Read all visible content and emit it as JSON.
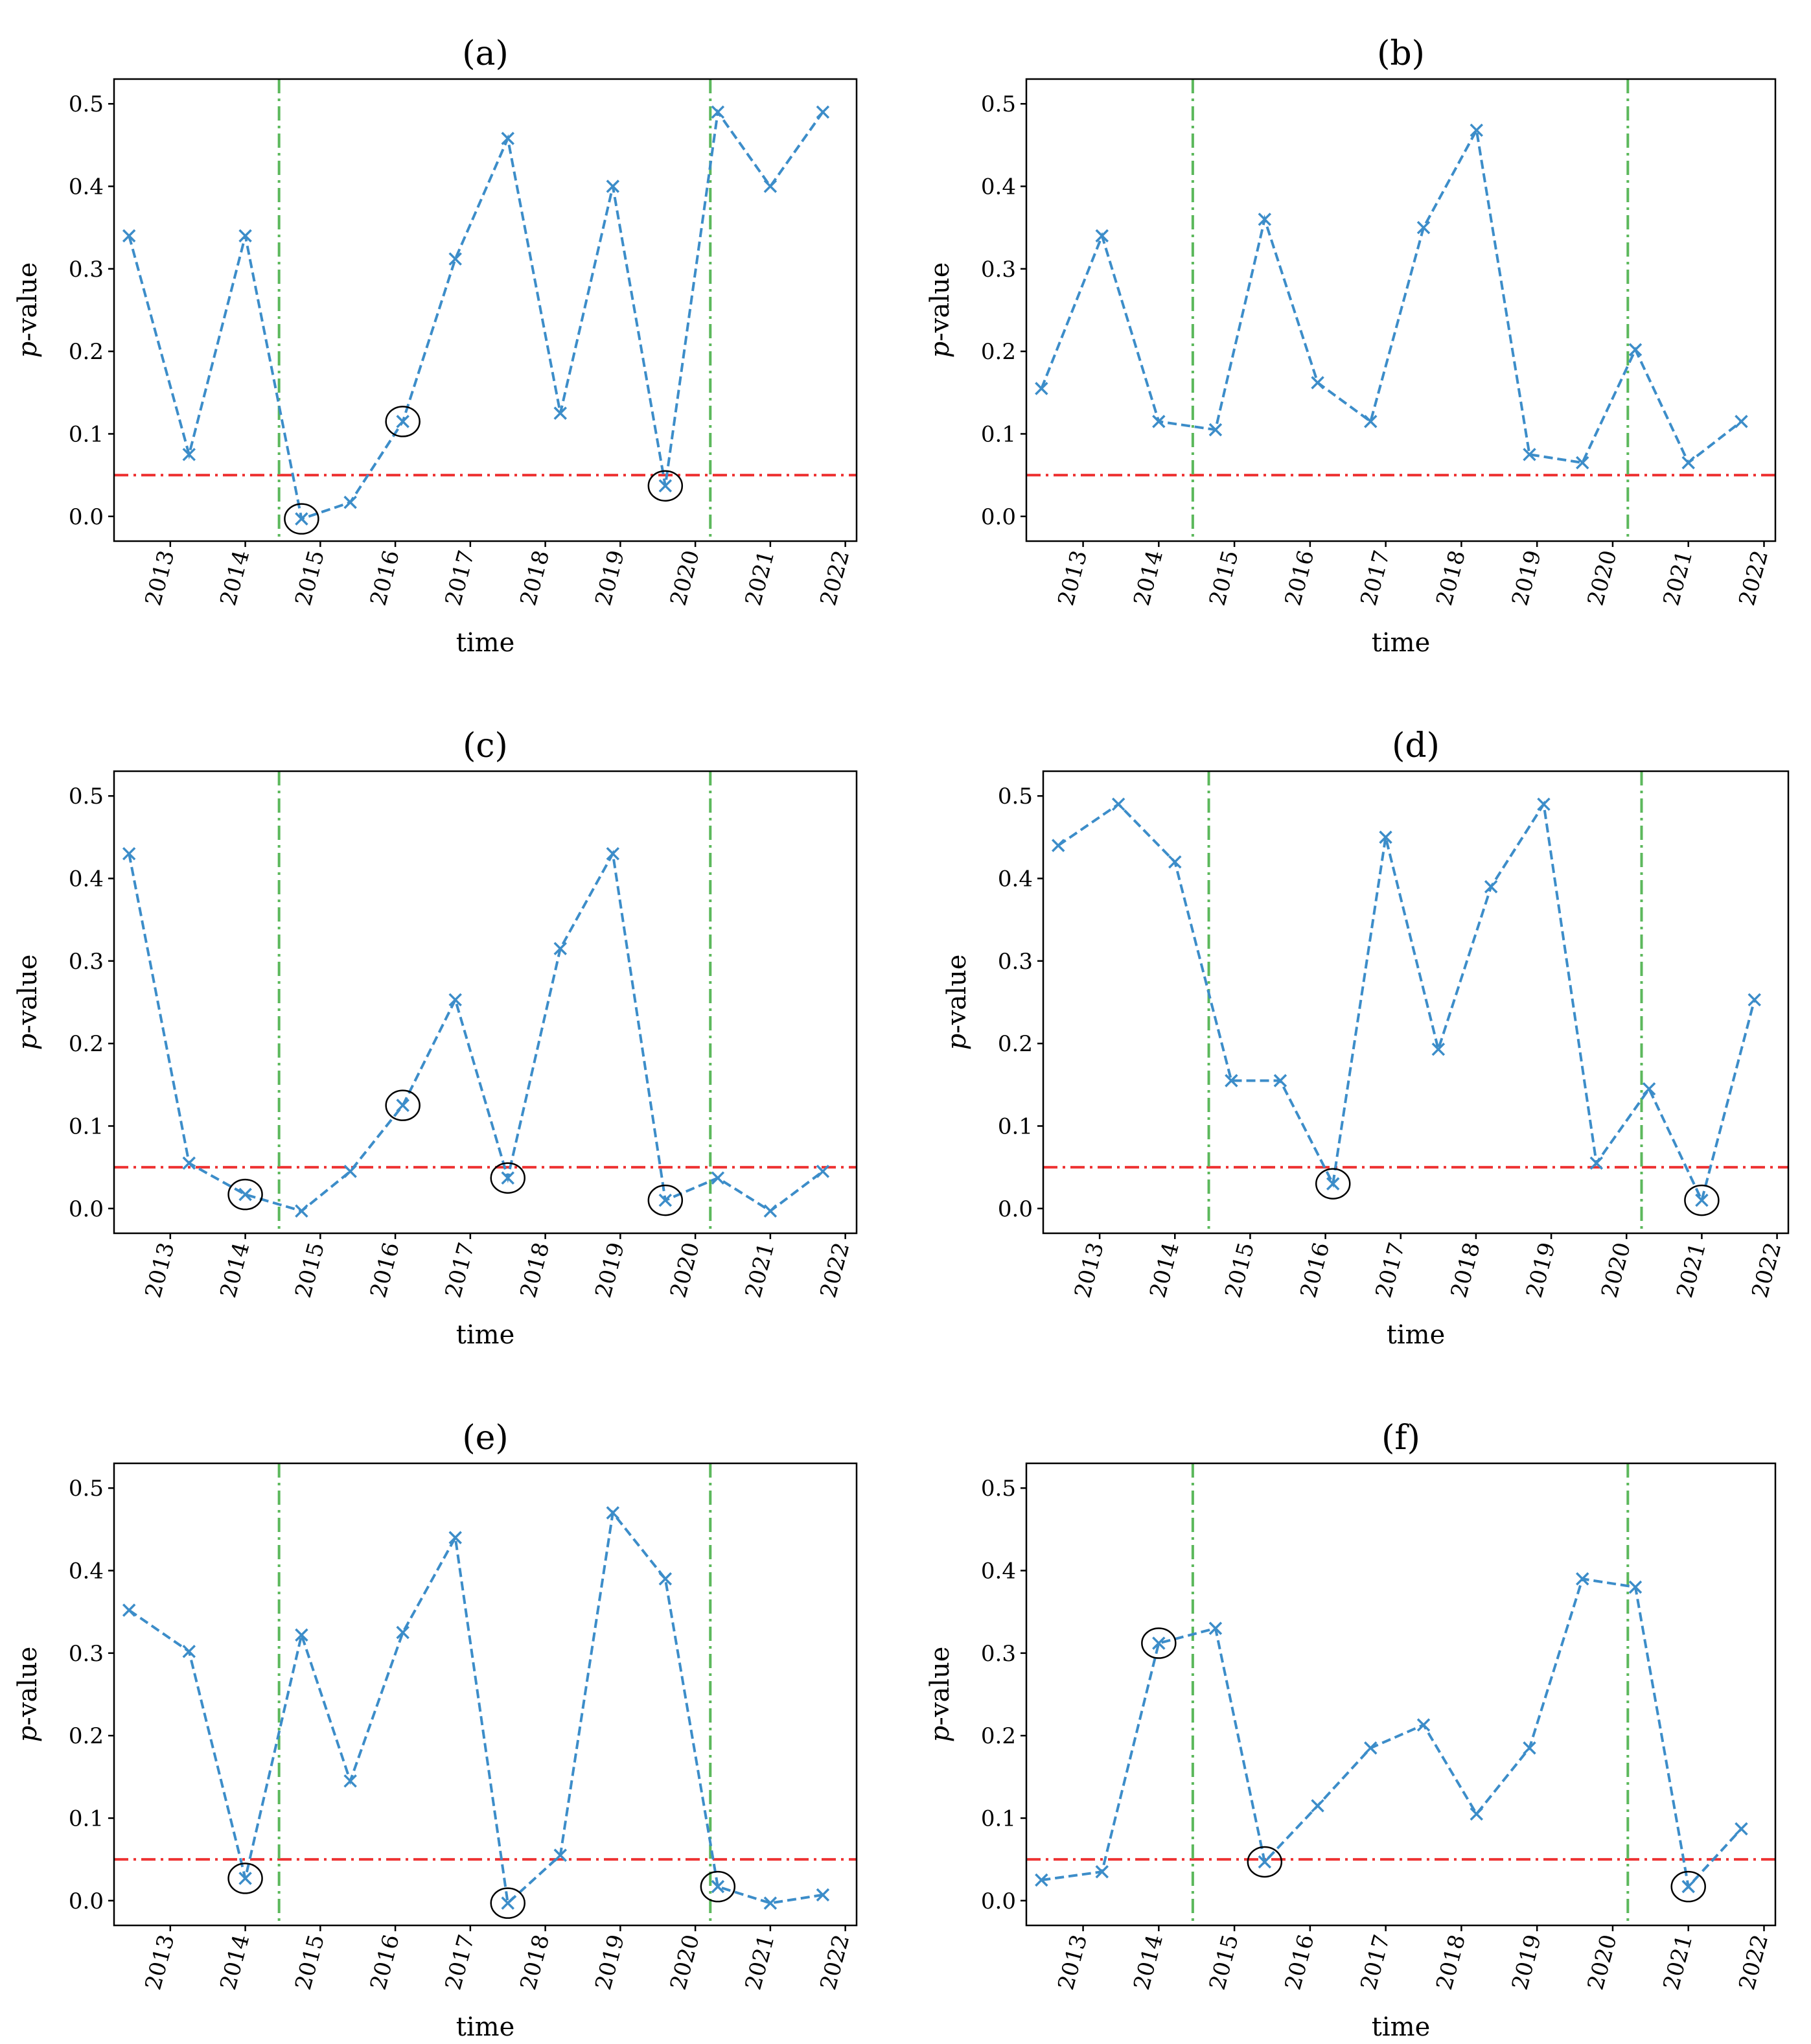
{
  "figure": {
    "colors": {
      "series": "#3c8dc9",
      "threshold": "#ee3333",
      "change_point": "#5cb85c",
      "highlight": "#000000"
    },
    "marker": "x",
    "threshold_value": 0.05,
    "change_point_dates": [
      "2014.45",
      "2020.2"
    ]
  },
  "chart_data": [
    {
      "type": "line",
      "title": "(a)",
      "xlabel": "time",
      "ylabel": "p-value",
      "ylabel_italic": "p",
      "ylabel_rest": "-value",
      "xlim": [
        2012.25,
        2022.15
      ],
      "ylim": [
        -0.03,
        0.53
      ],
      "xticks": [
        "2013",
        "2014",
        "2015",
        "2016",
        "2017",
        "2018",
        "2019",
        "2020",
        "2021",
        "2022"
      ],
      "yticks": [
        "0.0",
        "0.1",
        "0.2",
        "0.3",
        "0.4",
        "0.5"
      ],
      "x": [
        2012.45,
        2013.25,
        2014.0,
        2014.75,
        2015.4,
        2016.1,
        2016.8,
        2017.5,
        2018.2,
        2018.9,
        2019.6,
        2020.3,
        2021.0,
        2021.7
      ],
      "y": [
        0.34,
        0.075,
        0.34,
        -0.003,
        0.017,
        0.115,
        0.312,
        0.458,
        0.125,
        0.4,
        0.037,
        0.49,
        0.4,
        0.49
      ],
      "circled": [
        3,
        5,
        10
      ]
    },
    {
      "type": "line",
      "title": "(b)",
      "xlabel": "time",
      "ylabel": "p-value",
      "ylabel_italic": "p",
      "ylabel_rest": "-value",
      "xlim": [
        2012.25,
        2022.15
      ],
      "ylim": [
        -0.03,
        0.53
      ],
      "xticks": [
        "2013",
        "2014",
        "2015",
        "2016",
        "2017",
        "2018",
        "2019",
        "2020",
        "2021",
        "2022"
      ],
      "yticks": [
        "0.0",
        "0.1",
        "0.2",
        "0.3",
        "0.4",
        "0.5"
      ],
      "x": [
        2012.45,
        2013.25,
        2014.0,
        2014.75,
        2015.4,
        2016.1,
        2016.8,
        2017.5,
        2018.2,
        2018.9,
        2019.6,
        2020.3,
        2021.0,
        2021.7
      ],
      "y": [
        0.155,
        0.34,
        0.115,
        0.105,
        0.36,
        0.162,
        0.115,
        0.35,
        0.468,
        0.075,
        0.065,
        0.202,
        0.065,
        0.115
      ],
      "circled": []
    },
    {
      "type": "line",
      "title": "(c)",
      "xlabel": "time",
      "ylabel": "p-value",
      "ylabel_italic": "p",
      "ylabel_rest": "-value",
      "xlim": [
        2012.25,
        2022.15
      ],
      "ylim": [
        -0.03,
        0.53
      ],
      "xticks": [
        "2013",
        "2014",
        "2015",
        "2016",
        "2017",
        "2018",
        "2019",
        "2020",
        "2021",
        "2022"
      ],
      "yticks": [
        "0.0",
        "0.1",
        "0.2",
        "0.3",
        "0.4",
        "0.5"
      ],
      "x": [
        2012.45,
        2013.25,
        2014.0,
        2014.75,
        2015.4,
        2016.1,
        2016.8,
        2017.5,
        2018.2,
        2018.9,
        2019.6,
        2020.3,
        2021.0,
        2021.7
      ],
      "y": [
        0.43,
        0.055,
        0.017,
        -0.003,
        0.045,
        0.125,
        0.253,
        0.037,
        0.315,
        0.43,
        0.01,
        0.037,
        -0.003,
        0.045
      ],
      "circled": [
        2,
        5,
        7,
        10
      ]
    },
    {
      "type": "line",
      "title": "(d)",
      "xlabel": "time",
      "ylabel": "p-value",
      "ylabel_italic": "p",
      "ylabel_rest": "-value",
      "xlim": [
        2012.25,
        2022.15
      ],
      "ylim": [
        -0.03,
        0.53
      ],
      "xticks": [
        "2013",
        "2014",
        "2015",
        "2016",
        "2017",
        "2018",
        "2019",
        "2020",
        "2021",
        "2022"
      ],
      "yticks": [
        "0.0",
        "0.1",
        "0.2",
        "0.3",
        "0.4",
        "0.5"
      ],
      "x": [
        2012.45,
        2013.25,
        2014.0,
        2014.75,
        2015.4,
        2016.1,
        2016.8,
        2017.5,
        2018.2,
        2018.9,
        2019.6,
        2020.3,
        2021.0,
        2021.7
      ],
      "y": [
        0.44,
        0.49,
        0.42,
        0.155,
        0.155,
        0.03,
        0.45,
        0.193,
        0.39,
        0.49,
        0.055,
        0.145,
        0.01,
        0.253
      ],
      "circled": [
        5,
        12
      ]
    },
    {
      "type": "line",
      "title": "(e)",
      "xlabel": "time",
      "ylabel": "p-value",
      "ylabel_italic": "p",
      "ylabel_rest": "-value",
      "xlim": [
        2012.25,
        2022.15
      ],
      "ylim": [
        -0.03,
        0.53
      ],
      "xticks": [
        "2013",
        "2014",
        "2015",
        "2016",
        "2017",
        "2018",
        "2019",
        "2020",
        "2021",
        "2022"
      ],
      "yticks": [
        "0.0",
        "0.1",
        "0.2",
        "0.3",
        "0.4",
        "0.5"
      ],
      "x": [
        2012.45,
        2013.25,
        2014.0,
        2014.75,
        2015.4,
        2016.1,
        2016.8,
        2017.5,
        2018.2,
        2018.9,
        2019.6,
        2020.3,
        2021.0,
        2021.7
      ],
      "y": [
        0.352,
        0.302,
        0.027,
        0.322,
        0.145,
        0.325,
        0.44,
        -0.003,
        0.055,
        0.47,
        0.39,
        0.017,
        -0.003,
        0.007
      ],
      "circled": [
        2,
        7,
        11
      ]
    },
    {
      "type": "line",
      "title": "(f)",
      "xlabel": "time",
      "ylabel": "p-value",
      "ylabel_italic": "p",
      "ylabel_rest": "-value",
      "xlim": [
        2012.25,
        2022.15
      ],
      "ylim": [
        -0.03,
        0.53
      ],
      "xticks": [
        "2013",
        "2014",
        "2015",
        "2016",
        "2017",
        "2018",
        "2019",
        "2020",
        "2021",
        "2022"
      ],
      "yticks": [
        "0.0",
        "0.1",
        "0.2",
        "0.3",
        "0.4",
        "0.5"
      ],
      "x": [
        2012.45,
        2013.25,
        2014.0,
        2014.75,
        2015.4,
        2016.1,
        2016.8,
        2017.5,
        2018.2,
        2018.9,
        2019.6,
        2020.3,
        2021.0,
        2021.7
      ],
      "y": [
        0.025,
        0.035,
        0.312,
        0.33,
        0.047,
        0.115,
        0.185,
        0.213,
        0.105,
        0.185,
        0.39,
        0.38,
        0.017,
        0.087
      ],
      "circled": [
        2,
        4,
        12
      ]
    }
  ]
}
